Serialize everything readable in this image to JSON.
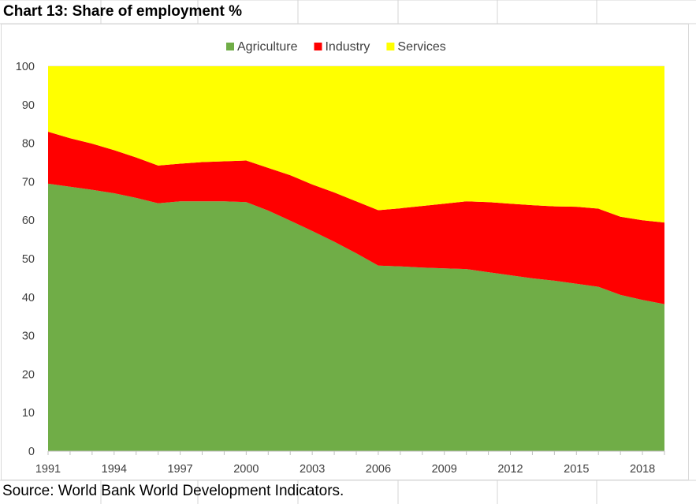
{
  "title": "Chart 13: Share of employment %",
  "source": "Source: World Bank World Development Indicators.",
  "chart_data": {
    "type": "area",
    "stacked": true,
    "x": [
      1991,
      1992,
      1993,
      1994,
      1995,
      1996,
      1997,
      1998,
      1999,
      2000,
      2001,
      2002,
      2003,
      2004,
      2005,
      2006,
      2007,
      2008,
      2009,
      2010,
      2011,
      2012,
      2013,
      2014,
      2015,
      2016,
      2017,
      2018,
      2019
    ],
    "x_tick_labels": [
      "1991",
      "1994",
      "1997",
      "2000",
      "2003",
      "2006",
      "2009",
      "2012",
      "2015",
      "2018"
    ],
    "y_tick_labels": [
      "0",
      "10",
      "20",
      "30",
      "40",
      "50",
      "60",
      "70",
      "80",
      "90",
      "100"
    ],
    "ylim": [
      0,
      100
    ],
    "legend_position": "top",
    "series": [
      {
        "name": "Agriculture",
        "color": "#70ad47",
        "values": [
          69.5,
          68.7,
          67.9,
          67.0,
          65.8,
          64.4,
          64.9,
          64.9,
          64.9,
          64.7,
          62.5,
          59.9,
          57.2,
          54.4,
          51.4,
          48.2,
          48.0,
          47.7,
          47.5,
          47.3,
          46.5,
          45.7,
          44.9,
          44.3,
          43.5,
          42.7,
          40.6,
          39.3,
          38.2
        ]
      },
      {
        "name": "Industry",
        "color": "#ff0000",
        "values": [
          13.5,
          12.6,
          12.0,
          11.2,
          10.5,
          9.8,
          9.8,
          10.2,
          10.4,
          10.8,
          11.1,
          11.8,
          12.1,
          12.8,
          13.5,
          14.4,
          15.1,
          16.0,
          16.8,
          17.6,
          18.2,
          18.6,
          19.0,
          19.3,
          20.0,
          20.3,
          20.3,
          20.7,
          21.2
        ]
      },
      {
        "name": "Services",
        "color": "#ffff00",
        "values": [
          17.0,
          18.7,
          20.1,
          21.8,
          23.7,
          25.8,
          25.3,
          24.9,
          24.7,
          24.5,
          26.4,
          28.3,
          30.7,
          32.8,
          35.1,
          37.4,
          36.9,
          36.3,
          35.7,
          35.1,
          35.3,
          35.7,
          36.1,
          36.4,
          36.5,
          37.0,
          39.1,
          40.0,
          40.6
        ]
      }
    ]
  }
}
